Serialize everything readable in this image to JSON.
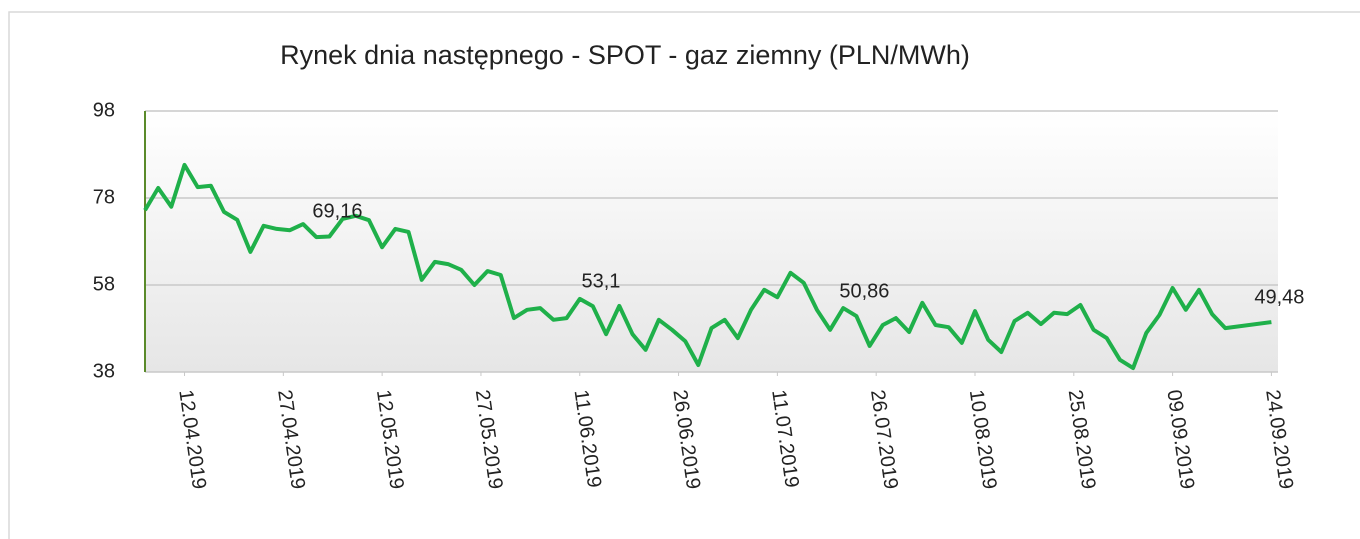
{
  "chart_data": {
    "type": "line",
    "title": "Rynek dnia następnego - SPOT - gaz ziemny (PLN/MWh)",
    "x": [
      "06.04.2019",
      "08.04.2019",
      "10.04.2019",
      "12.04.2019",
      "14.04.2019",
      "16.04.2019",
      "18.04.2019",
      "20.04.2019",
      "22.04.2019",
      "24.04.2019",
      "26.04.2019",
      "28.04.2019",
      "30.04.2019",
      "02.05.2019",
      "04.05.2019",
      "06.05.2019",
      "08.05.2019",
      "10.05.2019",
      "12.05.2019",
      "14.05.2019",
      "16.05.2019",
      "18.05.2019",
      "20.05.2019",
      "22.05.2019",
      "24.05.2019",
      "26.05.2019",
      "28.05.2019",
      "30.05.2019",
      "01.06.2019",
      "03.06.2019",
      "05.06.2019",
      "07.06.2019",
      "09.06.2019",
      "11.06.2019",
      "13.06.2019",
      "15.06.2019",
      "17.06.2019",
      "19.06.2019",
      "21.06.2019",
      "23.06.2019",
      "25.06.2019",
      "27.06.2019",
      "29.06.2019",
      "01.07.2019",
      "03.07.2019",
      "05.07.2019",
      "07.07.2019",
      "09.07.2019",
      "11.07.2019",
      "13.07.2019",
      "15.07.2019",
      "17.07.2019",
      "19.07.2019",
      "21.07.2019",
      "23.07.2019",
      "25.07.2019",
      "27.07.2019",
      "29.07.2019",
      "31.07.2019",
      "02.08.2019",
      "04.08.2019",
      "06.08.2019",
      "08.08.2019",
      "10.08.2019",
      "12.08.2019",
      "14.08.2019",
      "16.08.2019",
      "18.08.2019",
      "20.08.2019",
      "22.08.2019",
      "24.08.2019",
      "26.08.2019",
      "28.08.2019",
      "30.08.2019",
      "01.09.2019",
      "03.09.2019",
      "05.09.2019",
      "07.09.2019",
      "09.09.2019",
      "11.09.2019",
      "13.09.2019",
      "15.09.2019",
      "17.09.2019",
      "24.09.2019"
    ],
    "series": [
      {
        "color": "#1fb04a",
        "values": [
          75.2,
          80.3,
          76,
          85.6,
          80.5,
          80.8,
          74.8,
          73.0,
          65.6,
          71.6,
          70.9,
          70.6,
          72.0,
          69.0,
          69.16,
          73.2,
          73.9,
          72.9,
          66.7,
          70.9,
          70.2,
          59.2,
          63.3,
          62.8,
          61.5,
          58.0,
          61.2,
          60.3,
          50.4,
          52.3,
          52.7,
          50.0,
          50.4,
          54.8,
          53.1,
          46.7,
          53.2,
          46.7,
          43.1,
          50.0,
          47.7,
          45.1,
          39.6,
          48.1,
          50.0,
          45.8,
          52.3,
          56.9,
          55.2,
          60.8,
          58.5,
          52.3,
          47.7,
          52.7,
          50.86,
          44.0,
          48.8,
          50.4,
          47.2,
          53.9,
          48.8,
          48.3,
          44.7,
          52.0,
          45.4,
          42.6,
          49.7,
          51.6,
          49.0,
          51.6,
          51.3,
          53.4,
          47.7,
          45.8,
          40.8,
          38.9,
          47.0,
          51.1,
          57.3,
          52.3,
          56.9,
          51.3,
          48.1,
          49.48
        ],
        "value_labels": [
          null,
          null,
          null,
          null,
          null,
          null,
          null,
          null,
          null,
          null,
          null,
          null,
          null,
          null,
          "69,16",
          null,
          null,
          null,
          null,
          null,
          null,
          null,
          null,
          null,
          null,
          null,
          null,
          null,
          null,
          null,
          null,
          null,
          null,
          null,
          "53,1",
          null,
          null,
          null,
          null,
          null,
          null,
          null,
          null,
          null,
          null,
          null,
          null,
          null,
          null,
          null,
          null,
          null,
          null,
          null,
          "50,86",
          null,
          null,
          null,
          null,
          null,
          null,
          null,
          null,
          null,
          null,
          null,
          null,
          null,
          null,
          null,
          null,
          null,
          null,
          null,
          null,
          null,
          null,
          null,
          null,
          null,
          null,
          null,
          null,
          "49,48"
        ]
      }
    ],
    "xlim": [
      "06.04.2019",
      "25.09.2019"
    ],
    "xticks": [
      "12.04.2019",
      "27.04.2019",
      "12.05.2019",
      "27.05.2019",
      "11.06.2019",
      "26.06.2019",
      "11.07.2019",
      "26.07.2019",
      "10.08.2019",
      "25.08.2019",
      "09.09.2019",
      "24.09.2019"
    ],
    "ylim": [
      38,
      98
    ],
    "yticks": [
      38,
      58,
      78,
      98
    ],
    "grid": true
  }
}
